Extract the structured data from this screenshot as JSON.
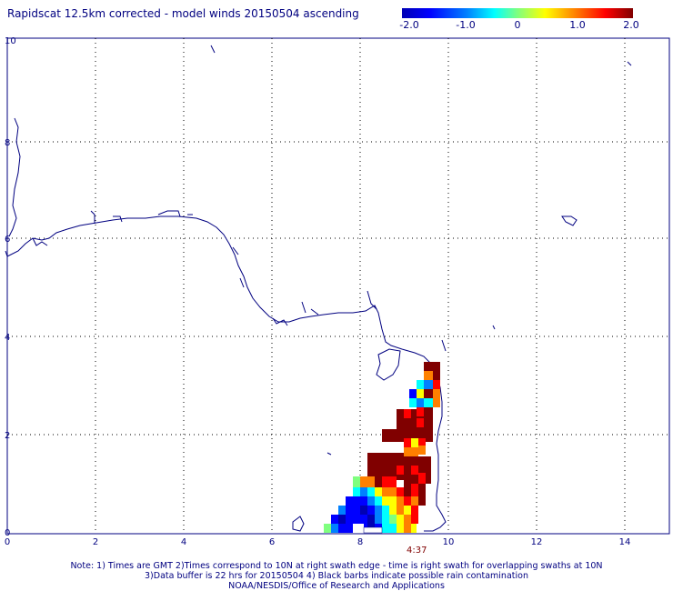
{
  "title": "Rapidscat 12.5km corrected - model winds 20150504 ascending",
  "colorbar": {
    "ticks": [
      "-2.0",
      "-1.0",
      "0",
      "1.0",
      "2.0"
    ],
    "colors": [
      "#0000b4",
      "#0000ff",
      "#0080ff",
      "#00ffff",
      "#7fff7f",
      "#ffff00",
      "#ff8000",
      "#ff0000",
      "#800000"
    ]
  },
  "axes": {
    "x_ticks": [
      "0",
      "2",
      "4",
      "6",
      "8",
      "10",
      "12",
      "14"
    ],
    "y_ticks": [
      "0",
      "2",
      "4",
      "6",
      "8",
      "10"
    ],
    "xlim": [
      0,
      15
    ],
    "ylim": [
      0,
      10
    ],
    "grid": true
  },
  "time_label": "4:37",
  "notes": [
    "Note: 1) Times are GMT 2)Times correspond to 10N at right swath edge - time is right swath for overlapping swaths at 10N",
    "3)Data buffer is 22 hrs for 20150504 4) Black barbs indicate possible rain contamination",
    "NOAA/NESDIS/Office of Research and Applications"
  ],
  "colors": {
    "text": "#000080",
    "coast": "#000080",
    "grid": "#000000",
    "time": "#800000"
  }
}
